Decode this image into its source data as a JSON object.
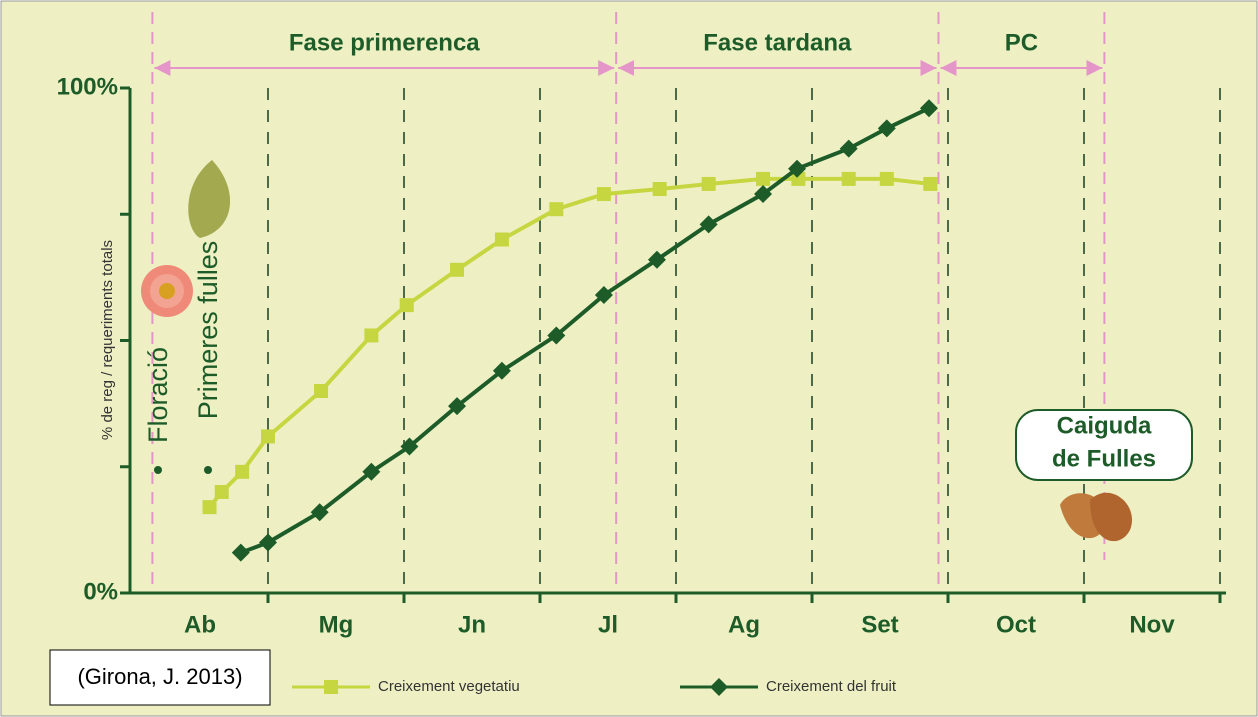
{
  "chart_data": {
    "type": "line",
    "ylabel": "% de reg / requeriments totals",
    "categories": [
      "Ab",
      "Mg",
      "Jn",
      "Jl",
      "Ag",
      "Set",
      "Oct",
      "Nov"
    ],
    "xlim": [
      0,
      8
    ],
    "xgrid": [
      1,
      2,
      3,
      4,
      5,
      6,
      7,
      8
    ],
    "ylim": [
      0,
      100
    ],
    "yticks": [
      {
        "value": 0,
        "label": "0%"
      },
      {
        "value": 25,
        "label": null
      },
      {
        "value": 50,
        "label": null
      },
      {
        "value": 75,
        "label": null
      },
      {
        "value": 100,
        "label": "100%"
      }
    ],
    "phases": [
      {
        "label": "Fase primerenca",
        "start": 0.15,
        "end": 3.56
      },
      {
        "label": "Fase tardana",
        "start": 3.56,
        "end": 5.93
      },
      {
        "label": "PC",
        "start": 5.93,
        "end": 7.15
      }
    ],
    "series": [
      {
        "name": "Creixement vegetatiu",
        "color": "#c6d640",
        "marker": "square",
        "x": [
          0.57,
          0.66,
          0.81,
          1.0,
          1.39,
          1.76,
          2.02,
          2.39,
          2.72,
          3.12,
          3.47,
          3.88,
          4.24,
          4.64,
          4.9,
          5.27,
          5.55,
          5.87
        ],
        "values": [
          17,
          20,
          24,
          31,
          40,
          51,
          57,
          64,
          70,
          76,
          79,
          80,
          81,
          82,
          82,
          82,
          82,
          81
        ]
      },
      {
        "name": "Creixement del fruit",
        "color": "#1d5c28",
        "marker": "diamond",
        "x": [
          0.8,
          1.0,
          1.38,
          1.76,
          2.04,
          2.39,
          2.72,
          3.12,
          3.47,
          3.86,
          4.24,
          4.64,
          4.89,
          5.27,
          5.55,
          5.86
        ],
        "values": [
          8,
          10,
          16,
          24,
          29,
          37,
          44,
          51,
          59,
          66,
          73,
          79,
          84,
          88,
          92,
          96
        ]
      }
    ],
    "annotations": {
      "flowering": "Floració",
      "first_leaves": "Primeres fulles",
      "leaf_fall": [
        "Caiguda",
        "de Fulles"
      ],
      "source": "(Girona, J. 2013)"
    }
  }
}
